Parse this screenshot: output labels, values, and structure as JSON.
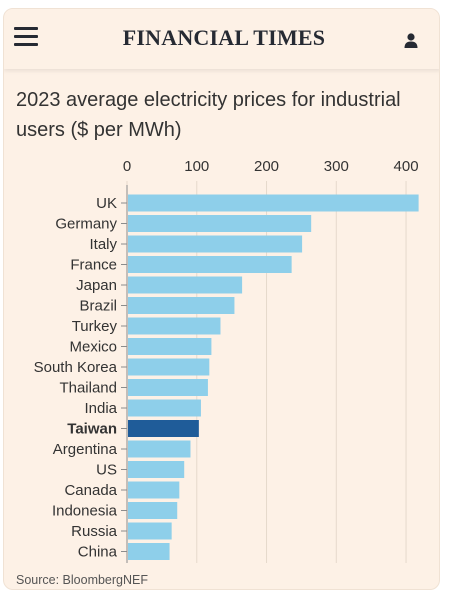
{
  "header": {
    "brand": "FINANCIAL TIMES",
    "menu_icon": "hamburger-menu-icon",
    "user_icon": "user-icon"
  },
  "source": "Source: BloombergNEF",
  "colors": {
    "bar": "#8ecfea",
    "highlight": "#1f5c99",
    "background": "#fdf1e6",
    "text": "#333333",
    "axis": "#8c8c8c"
  },
  "chart_data": {
    "type": "bar",
    "orientation": "horizontal",
    "title": "2023 average electricity prices for industrial users ($ per MWh)",
    "categories": [
      "UK",
      "Germany",
      "Italy",
      "France",
      "Japan",
      "Brazil",
      "Turkey",
      "Mexico",
      "South Korea",
      "Thailand",
      "India",
      "Taiwan",
      "Argentina",
      "US",
      "Canada",
      "Indonesia",
      "Russia",
      "China"
    ],
    "values": [
      418,
      264,
      251,
      236,
      165,
      154,
      134,
      121,
      118,
      116,
      106,
      103,
      91,
      82,
      75,
      72,
      64,
      61
    ],
    "highlight": "Taiwan",
    "xlim": [
      0,
      420
    ],
    "xticks": [
      0,
      100,
      200,
      300,
      400
    ],
    "axis_position": "top",
    "grid": true
  }
}
